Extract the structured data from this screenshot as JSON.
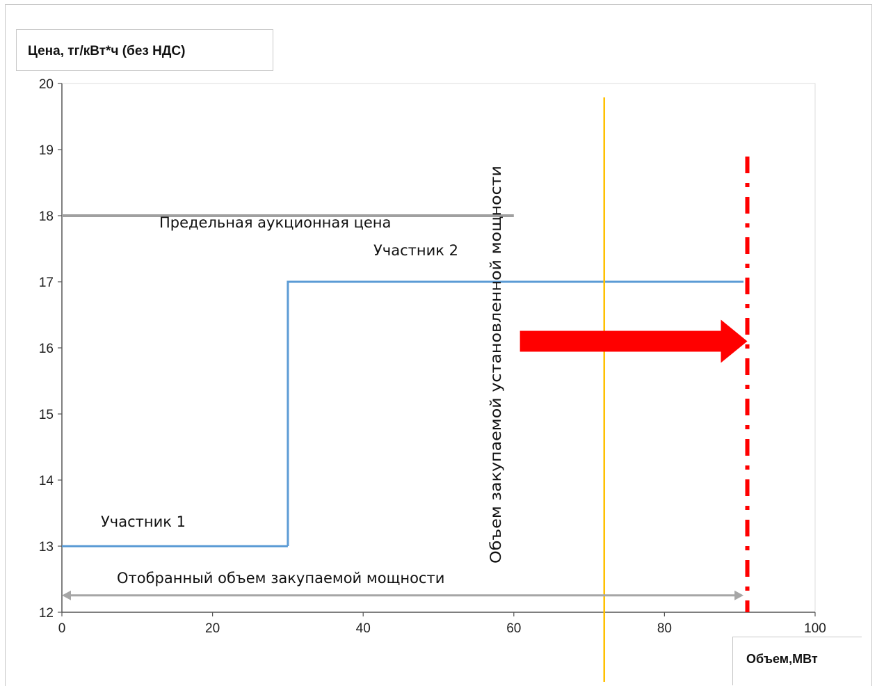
{
  "chart_data": {
    "type": "line",
    "ylabel": "Цена, тг/кВт*ч (без НДС)",
    "xlabel": "Объем,МВт",
    "xlim": [
      0,
      100
    ],
    "ylim": [
      12,
      20
    ],
    "x_ticks": [
      0,
      20,
      40,
      60,
      80,
      100
    ],
    "y_ticks": [
      12,
      13,
      14,
      15,
      16,
      17,
      18,
      19,
      20
    ],
    "grid": false,
    "series": [
      {
        "name": "Участник 1",
        "color": "#5b9bd5",
        "points": [
          [
            0,
            13
          ],
          [
            30,
            13
          ]
        ]
      },
      {
        "name": "Участник 2",
        "color": "#5b9bd5",
        "points": [
          [
            30,
            13
          ],
          [
            30,
            17
          ],
          [
            90.5,
            17
          ]
        ]
      },
      {
        "name": "Предельная аукционная цена",
        "color": "#a0a0a0",
        "points": [
          [
            0,
            18
          ],
          [
            60,
            18
          ]
        ]
      }
    ],
    "annotations": {
      "limit_price_label": "Предельная аукционная цена",
      "participant_1_label": "Участник 1",
      "participant_2_label": "Участник 2",
      "vertical_label": "Объем закупаемой установленной мощности",
      "selected_volume_label": "Отобранный объем закупаемой мощности"
    },
    "vertical_lines": [
      {
        "x": 72,
        "color": "#ffc000",
        "style": "solid"
      },
      {
        "x": 91,
        "color": "#ff0000",
        "style": "dash-dot"
      }
    ],
    "double_arrow": {
      "x_from": 0,
      "x_to": 90.5,
      "y": 12.25,
      "color": "#a6a6a6"
    },
    "shift_arrow": {
      "x_from": 61,
      "x_to": 91,
      "y": 16.1,
      "color": "#ff0000"
    }
  }
}
